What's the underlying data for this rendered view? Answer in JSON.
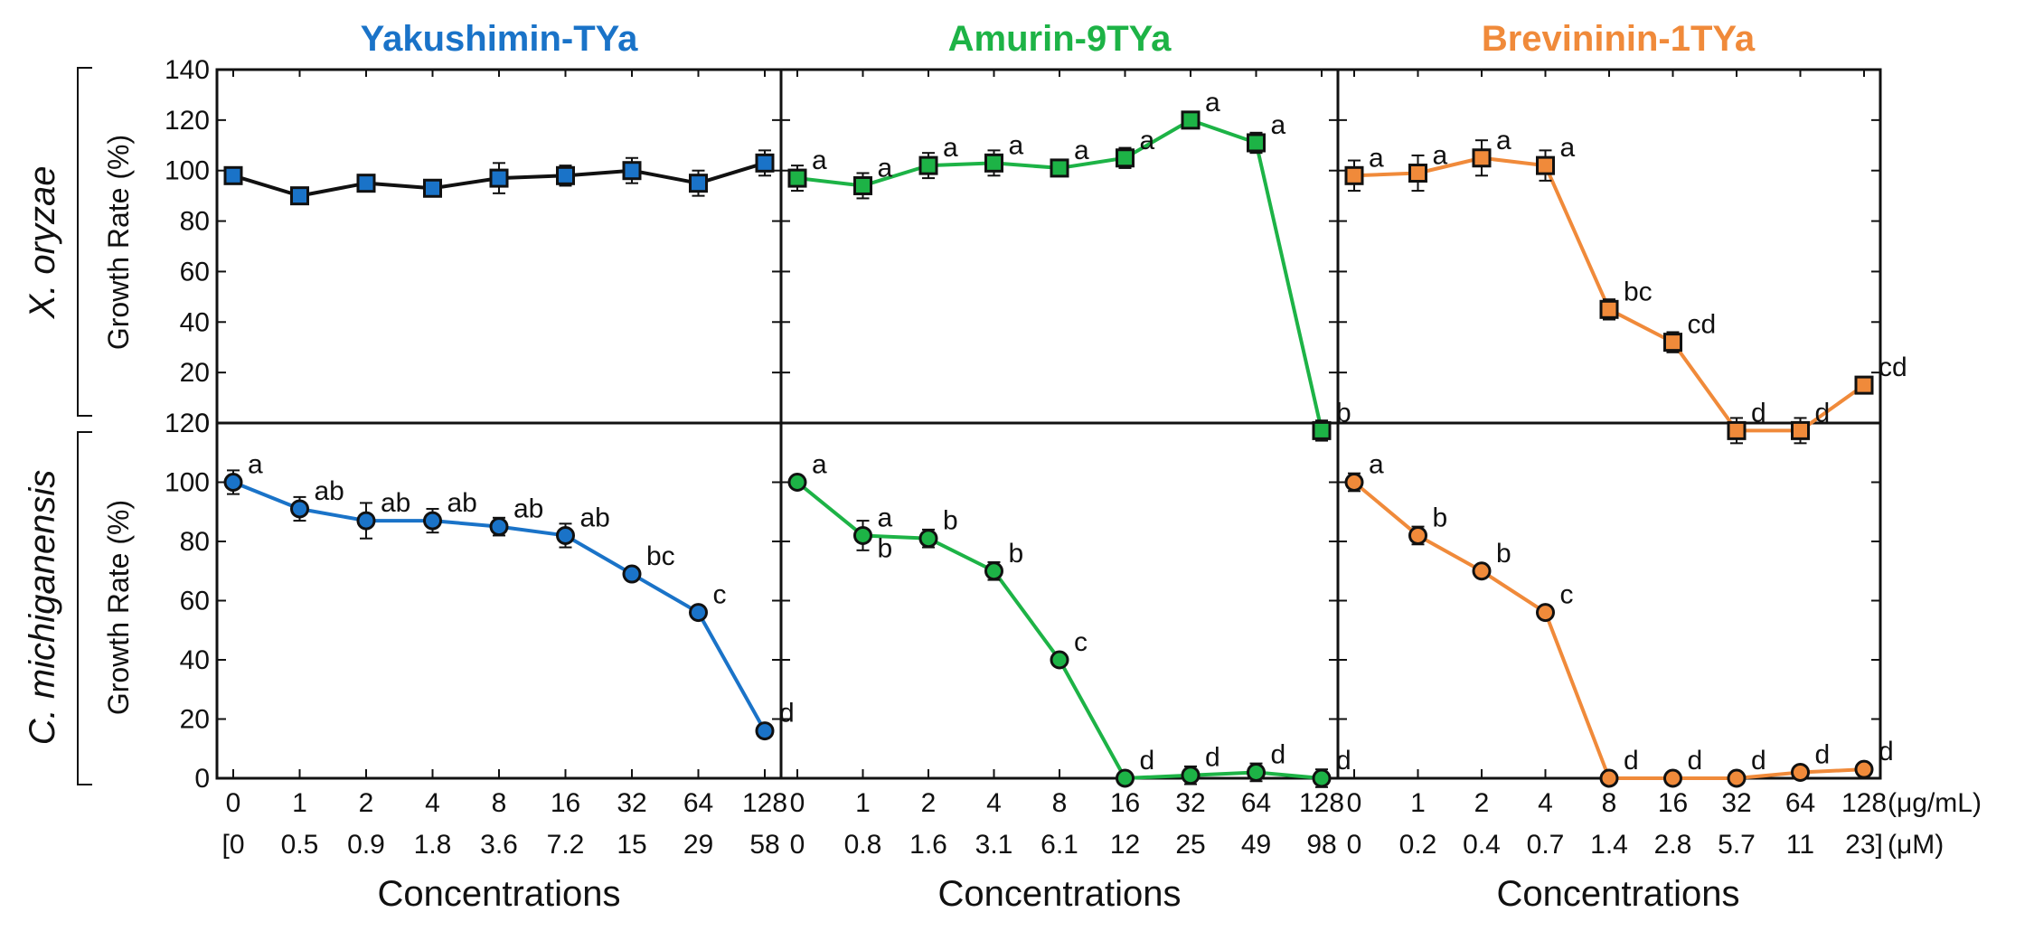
{
  "chart_data": {
    "type": "line",
    "description_y_left": "Growth Rate (%)",
    "row_labels": [
      "X. oryzae",
      "C. michiganensis"
    ],
    "ylabel": "Growth Rate (%)",
    "xlabel": "Concentrations",
    "unit_top": "(μg/mL)",
    "unit_bottom": "(μM)",
    "columns": [
      {
        "title": "Yakushimin-TYa",
        "color": "#1a73c8",
        "ug_labels": [
          "0",
          "1",
          "2",
          "4",
          "8",
          "16",
          "32",
          "64",
          "128"
        ],
        "um_labels": [
          "[0",
          "0.5",
          "0.9",
          "1.8",
          "3.6",
          "7.2",
          "15",
          "29",
          "58"
        ]
      },
      {
        "title": "Amurin-9TYa",
        "color": "#1db346",
        "ug_labels": [
          "0",
          "1",
          "2",
          "4",
          "8",
          "16",
          "32",
          "64",
          "128"
        ],
        "um_labels": [
          "0",
          "0.8",
          "1.6",
          "3.1",
          "6.1",
          "12",
          "25",
          "49",
          "98"
        ]
      },
      {
        "title": "Brevininin-1TYa",
        "color": "#f08a3a",
        "ug_labels": [
          "0",
          "1",
          "2",
          "4",
          "8",
          "16",
          "32",
          "64",
          "128"
        ],
        "um_labels": [
          "0",
          "0.2",
          "0.4",
          "0.7",
          "1.4",
          "2.8",
          "5.7",
          "11",
          "23]"
        ]
      }
    ],
    "panels": [
      {
        "row": 0,
        "col": 0,
        "ylim": [
          0,
          140
        ],
        "yticks": [
          0,
          20,
          40,
          60,
          80,
          100,
          120,
          140
        ],
        "marker": "square",
        "marker_color": "#1a73c8",
        "line_color": "#111111",
        "values": [
          98,
          90,
          95,
          93,
          97,
          98,
          100,
          95,
          103
        ],
        "errors": [
          3,
          2,
          2,
          3,
          6,
          4,
          5,
          5,
          5
        ],
        "letters": [
          "",
          "",
          "",
          "",
          "",
          "",
          "",
          "",
          ""
        ]
      },
      {
        "row": 0,
        "col": 1,
        "ylim": [
          0,
          140
        ],
        "yticks": [],
        "marker": "square",
        "marker_color": "#1db346",
        "line_color": "#1db346",
        "values": [
          97,
          94,
          102,
          103,
          101,
          105,
          120,
          111,
          -5
        ],
        "errors": [
          5,
          5,
          5,
          5,
          3,
          4,
          3,
          4,
          4
        ],
        "letters": [
          "a",
          "a",
          "a",
          "a",
          "a",
          "a",
          "a",
          "a",
          "b"
        ]
      },
      {
        "row": 0,
        "col": 2,
        "ylim": [
          0,
          140
        ],
        "yticks": [],
        "marker": "square",
        "marker_color": "#f08a3a",
        "line_color": "#f08a3a",
        "values": [
          98,
          99,
          105,
          102,
          45,
          32,
          -5,
          -5,
          15
        ],
        "errors": [
          6,
          7,
          7,
          6,
          4,
          4,
          5,
          5,
          3
        ],
        "letters": [
          "a",
          "a",
          "a",
          "a",
          "bc",
          "cd",
          "d",
          "d",
          "cd"
        ]
      },
      {
        "row": 1,
        "col": 0,
        "ylim": [
          0,
          120
        ],
        "yticks": [
          0,
          20,
          40,
          60,
          80,
          100,
          120
        ],
        "marker": "circle",
        "marker_color": "#1a73c8",
        "line_color": "#1a73c8",
        "values": [
          100,
          91,
          87,
          87,
          85,
          82,
          69,
          56,
          16
        ],
        "errors": [
          4,
          4,
          6,
          4,
          3,
          4,
          2,
          2,
          2
        ],
        "letters": [
          "a",
          "ab",
          "ab",
          "ab",
          "ab",
          "ab",
          "bc",
          "c",
          "d"
        ]
      },
      {
        "row": 1,
        "col": 1,
        "ylim": [
          0,
          120
        ],
        "yticks": [],
        "marker": "circle",
        "marker_color": "#1db346",
        "line_color": "#1db346",
        "values": [
          100,
          82,
          81,
          70,
          40,
          0,
          1,
          2,
          0
        ],
        "errors": [
          2,
          5,
          3,
          3,
          2,
          2,
          3,
          3,
          3
        ],
        "letters": [
          "a",
          "a\nb",
          "b",
          "b",
          "c",
          "d",
          "d",
          "d",
          "d"
        ]
      },
      {
        "row": 1,
        "col": 2,
        "ylim": [
          0,
          120
        ],
        "yticks": [],
        "marker": "circle",
        "marker_color": "#f08a3a",
        "line_color": "#f08a3a",
        "values": [
          100,
          82,
          70,
          56,
          0,
          0,
          0,
          2,
          3
        ],
        "errors": [
          3,
          3,
          2,
          2,
          2,
          2,
          2,
          2,
          2
        ],
        "letters": [
          "a",
          "b",
          "b",
          "c",
          "d",
          "d",
          "d",
          "d",
          "d"
        ]
      }
    ]
  }
}
